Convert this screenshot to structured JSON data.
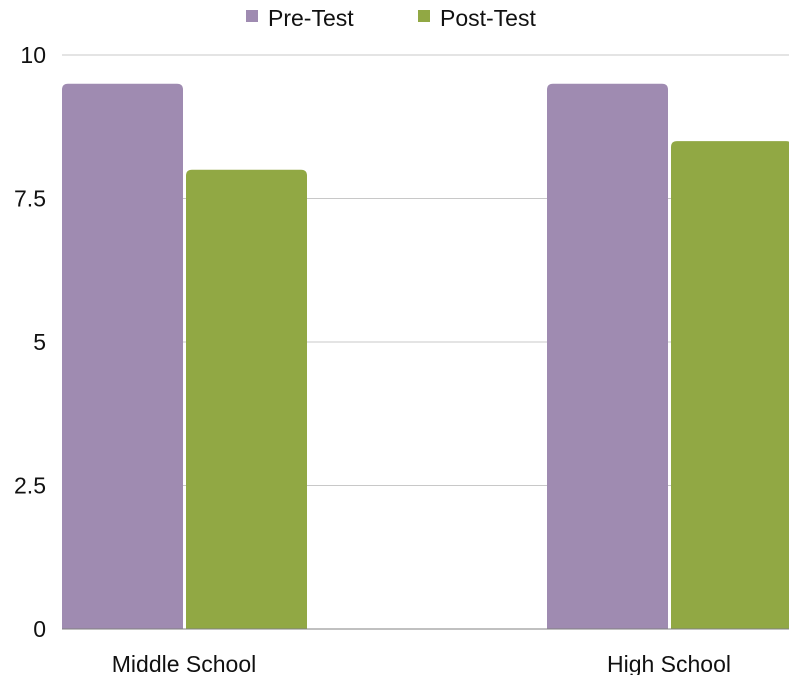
{
  "chart_data": {
    "type": "bar",
    "categories": [
      "Middle School",
      "High School"
    ],
    "series": [
      {
        "name": "Pre-Test",
        "values": [
          9.5,
          9.5
        ],
        "color": "#9f8bb1"
      },
      {
        "name": "Post-Test",
        "values": [
          8.0,
          8.5
        ],
        "color": "#91a844"
      }
    ],
    "ylim": [
      0,
      10
    ],
    "yticks": [
      0,
      2.5,
      5,
      7.5,
      10
    ],
    "ytick_labels": [
      "0",
      "2.5",
      "5",
      "7.5",
      "10"
    ],
    "grid": true,
    "legend_position": "top-center",
    "title": "",
    "xlabel": "",
    "ylabel": ""
  }
}
